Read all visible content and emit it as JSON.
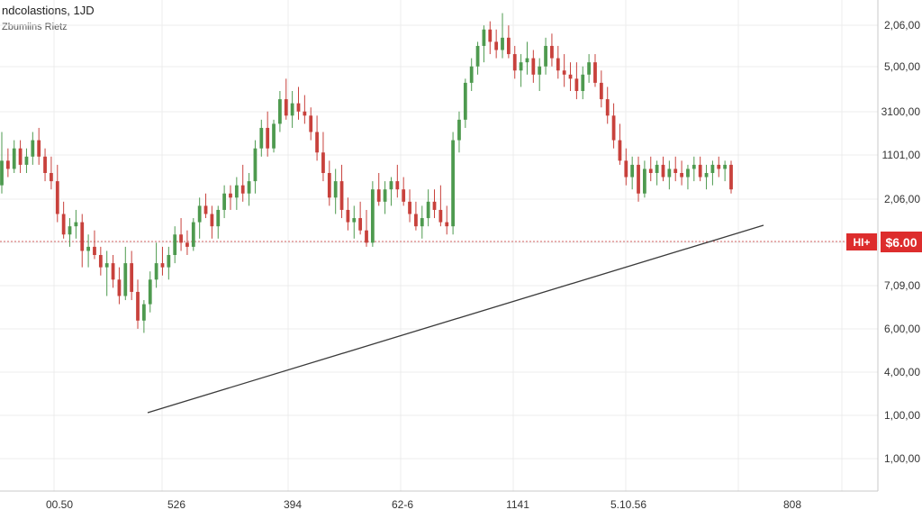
{
  "header": {
    "title": "ndcolastions, 1JD",
    "subtitle": "Zbumiins Rietz"
  },
  "price_tag": {
    "label": "HI+",
    "value": "$6.00"
  },
  "colors": {
    "up": "#4e9a4f",
    "down": "#c8413c",
    "trend": "#3a3a3a",
    "dotted": "#d96a6a",
    "grid": "#ececec",
    "tag": "#dd2d2d"
  },
  "chart_data": {
    "type": "candlestick",
    "title": "ndcolastions, 1JD",
    "subtitle": "Zbumiins Rietz",
    "xlabel": "",
    "ylabel": "",
    "x_tick_labels": [
      "00.50",
      "526",
      "394",
      "62-6",
      "1141",
      "5.10.56",
      "808"
    ],
    "y_tick_labels": [
      "2,06,00",
      "5,00,00",
      "3100,00",
      "1101,00",
      "2,06,00",
      "$6.00",
      "7,09,00",
      "6,00,00",
      "4,00,00",
      "1,00,00",
      "1,00,00"
    ],
    "ylim": [
      0,
      100
    ],
    "grid": true,
    "candles": [
      {
        "o": 57,
        "h": 70,
        "l": 55,
        "c": 63
      },
      {
        "o": 63,
        "h": 66,
        "l": 59,
        "c": 61
      },
      {
        "o": 61,
        "h": 68,
        "l": 60,
        "c": 66
      },
      {
        "o": 66,
        "h": 68,
        "l": 60,
        "c": 62
      },
      {
        "o": 62,
        "h": 66,
        "l": 60,
        "c": 64
      },
      {
        "o": 64,
        "h": 70,
        "l": 62,
        "c": 68
      },
      {
        "o": 68,
        "h": 71,
        "l": 62,
        "c": 64
      },
      {
        "o": 64,
        "h": 66,
        "l": 58,
        "c": 60
      },
      {
        "o": 60,
        "h": 64,
        "l": 56,
        "c": 58
      },
      {
        "o": 58,
        "h": 62,
        "l": 48,
        "c": 50
      },
      {
        "o": 50,
        "h": 53,
        "l": 44,
        "c": 45
      },
      {
        "o": 45,
        "h": 49,
        "l": 42,
        "c": 47
      },
      {
        "o": 47,
        "h": 51,
        "l": 44,
        "c": 48
      },
      {
        "o": 48,
        "h": 50,
        "l": 37,
        "c": 41
      },
      {
        "o": 41,
        "h": 45,
        "l": 37,
        "c": 42
      },
      {
        "o": 42,
        "h": 46,
        "l": 39,
        "c": 40
      },
      {
        "o": 40,
        "h": 42,
        "l": 35,
        "c": 37
      },
      {
        "o": 37,
        "h": 41,
        "l": 30,
        "c": 38
      },
      {
        "o": 38,
        "h": 40,
        "l": 32,
        "c": 34
      },
      {
        "o": 34,
        "h": 37,
        "l": 28,
        "c": 30
      },
      {
        "o": 30,
        "h": 42,
        "l": 29,
        "c": 38
      },
      {
        "o": 38,
        "h": 41,
        "l": 29,
        "c": 31
      },
      {
        "o": 31,
        "h": 34,
        "l": 22,
        "c": 24
      },
      {
        "o": 24,
        "h": 29,
        "l": 21,
        "c": 28
      },
      {
        "o": 28,
        "h": 36,
        "l": 26,
        "c": 34
      },
      {
        "o": 34,
        "h": 43,
        "l": 32,
        "c": 38
      },
      {
        "o": 38,
        "h": 42,
        "l": 35,
        "c": 37
      },
      {
        "o": 37,
        "h": 42,
        "l": 34,
        "c": 40
      },
      {
        "o": 40,
        "h": 47,
        "l": 38,
        "c": 45
      },
      {
        "o": 45,
        "h": 49,
        "l": 41,
        "c": 43
      },
      {
        "o": 43,
        "h": 46,
        "l": 40,
        "c": 42
      },
      {
        "o": 42,
        "h": 49,
        "l": 41,
        "c": 48
      },
      {
        "o": 48,
        "h": 54,
        "l": 44,
        "c": 52
      },
      {
        "o": 52,
        "h": 55,
        "l": 49,
        "c": 50
      },
      {
        "o": 50,
        "h": 52,
        "l": 44,
        "c": 47
      },
      {
        "o": 47,
        "h": 52,
        "l": 44,
        "c": 51
      },
      {
        "o": 51,
        "h": 57,
        "l": 49,
        "c": 55
      },
      {
        "o": 55,
        "h": 57,
        "l": 51,
        "c": 54
      },
      {
        "o": 54,
        "h": 59,
        "l": 51,
        "c": 57
      },
      {
        "o": 57,
        "h": 62,
        "l": 53,
        "c": 55
      },
      {
        "o": 55,
        "h": 60,
        "l": 52,
        "c": 58
      },
      {
        "o": 58,
        "h": 68,
        "l": 55,
        "c": 66
      },
      {
        "o": 66,
        "h": 73,
        "l": 64,
        "c": 71
      },
      {
        "o": 71,
        "h": 75,
        "l": 64,
        "c": 66
      },
      {
        "o": 66,
        "h": 73,
        "l": 65,
        "c": 72
      },
      {
        "o": 72,
        "h": 80,
        "l": 70,
        "c": 78
      },
      {
        "o": 78,
        "h": 83,
        "l": 73,
        "c": 74
      },
      {
        "o": 74,
        "h": 80,
        "l": 71,
        "c": 77
      },
      {
        "o": 77,
        "h": 81,
        "l": 73,
        "c": 75
      },
      {
        "o": 75,
        "h": 79,
        "l": 72,
        "c": 74
      },
      {
        "o": 74,
        "h": 76,
        "l": 68,
        "c": 70
      },
      {
        "o": 70,
        "h": 74,
        "l": 63,
        "c": 65
      },
      {
        "o": 65,
        "h": 70,
        "l": 58,
        "c": 60
      },
      {
        "o": 60,
        "h": 63,
        "l": 52,
        "c": 54
      },
      {
        "o": 54,
        "h": 61,
        "l": 50,
        "c": 58
      },
      {
        "o": 58,
        "h": 62,
        "l": 49,
        "c": 51
      },
      {
        "o": 51,
        "h": 54,
        "l": 46,
        "c": 48
      },
      {
        "o": 48,
        "h": 52,
        "l": 44,
        "c": 49
      },
      {
        "o": 49,
        "h": 53,
        "l": 45,
        "c": 46
      },
      {
        "o": 46,
        "h": 51,
        "l": 42,
        "c": 43
      },
      {
        "o": 43,
        "h": 58,
        "l": 42,
        "c": 56
      },
      {
        "o": 56,
        "h": 60,
        "l": 52,
        "c": 53
      },
      {
        "o": 53,
        "h": 58,
        "l": 50,
        "c": 56
      },
      {
        "o": 56,
        "h": 59,
        "l": 52,
        "c": 58
      },
      {
        "o": 58,
        "h": 62,
        "l": 54,
        "c": 56
      },
      {
        "o": 56,
        "h": 59,
        "l": 52,
        "c": 53
      },
      {
        "o": 53,
        "h": 56,
        "l": 48,
        "c": 50
      },
      {
        "o": 50,
        "h": 53,
        "l": 46,
        "c": 47
      },
      {
        "o": 47,
        "h": 52,
        "l": 44,
        "c": 49
      },
      {
        "o": 49,
        "h": 56,
        "l": 47,
        "c": 53
      },
      {
        "o": 53,
        "h": 56,
        "l": 49,
        "c": 51
      },
      {
        "o": 51,
        "h": 57,
        "l": 47,
        "c": 48
      },
      {
        "o": 48,
        "h": 52,
        "l": 45,
        "c": 47
      },
      {
        "o": 47,
        "h": 70,
        "l": 45,
        "c": 68
      },
      {
        "o": 68,
        "h": 75,
        "l": 65,
        "c": 73
      },
      {
        "o": 73,
        "h": 83,
        "l": 71,
        "c": 82
      },
      {
        "o": 82,
        "h": 88,
        "l": 80,
        "c": 86
      },
      {
        "o": 86,
        "h": 92,
        "l": 84,
        "c": 91
      },
      {
        "o": 91,
        "h": 96,
        "l": 87,
        "c": 95
      },
      {
        "o": 95,
        "h": 97,
        "l": 89,
        "c": 92
      },
      {
        "o": 92,
        "h": 95,
        "l": 88,
        "c": 90
      },
      {
        "o": 90,
        "h": 99,
        "l": 88,
        "c": 93
      },
      {
        "o": 93,
        "h": 96,
        "l": 88,
        "c": 89
      },
      {
        "o": 89,
        "h": 91,
        "l": 83,
        "c": 85
      },
      {
        "o": 85,
        "h": 89,
        "l": 81,
        "c": 87
      },
      {
        "o": 87,
        "h": 92,
        "l": 84,
        "c": 88
      },
      {
        "o": 88,
        "h": 90,
        "l": 82,
        "c": 84
      },
      {
        "o": 84,
        "h": 88,
        "l": 80,
        "c": 86
      },
      {
        "o": 86,
        "h": 93,
        "l": 84,
        "c": 91
      },
      {
        "o": 91,
        "h": 94,
        "l": 86,
        "c": 88
      },
      {
        "o": 88,
        "h": 91,
        "l": 83,
        "c": 85
      },
      {
        "o": 85,
        "h": 89,
        "l": 81,
        "c": 84
      },
      {
        "o": 84,
        "h": 87,
        "l": 80,
        "c": 83
      },
      {
        "o": 83,
        "h": 87,
        "l": 78,
        "c": 80
      },
      {
        "o": 80,
        "h": 86,
        "l": 78,
        "c": 84
      },
      {
        "o": 84,
        "h": 89,
        "l": 82,
        "c": 87
      },
      {
        "o": 87,
        "h": 89,
        "l": 81,
        "c": 82
      },
      {
        "o": 82,
        "h": 85,
        "l": 76,
        "c": 78
      },
      {
        "o": 78,
        "h": 81,
        "l": 72,
        "c": 74
      },
      {
        "o": 74,
        "h": 77,
        "l": 66,
        "c": 68
      },
      {
        "o": 68,
        "h": 72,
        "l": 62,
        "c": 63
      },
      {
        "o": 63,
        "h": 66,
        "l": 57,
        "c": 59
      },
      {
        "o": 59,
        "h": 64,
        "l": 56,
        "c": 62
      },
      {
        "o": 62,
        "h": 64,
        "l": 53,
        "c": 55
      },
      {
        "o": 55,
        "h": 63,
        "l": 54,
        "c": 61
      },
      {
        "o": 61,
        "h": 64,
        "l": 58,
        "c": 60
      },
      {
        "o": 60,
        "h": 63,
        "l": 57,
        "c": 62
      },
      {
        "o": 62,
        "h": 64,
        "l": 58,
        "c": 59
      },
      {
        "o": 59,
        "h": 63,
        "l": 56,
        "c": 61
      },
      {
        "o": 61,
        "h": 64,
        "l": 58,
        "c": 60
      },
      {
        "o": 60,
        "h": 63,
        "l": 57,
        "c": 59
      },
      {
        "o": 59,
        "h": 62,
        "l": 56,
        "c": 61
      },
      {
        "o": 61,
        "h": 64,
        "l": 58,
        "c": 62
      },
      {
        "o": 62,
        "h": 64,
        "l": 58,
        "c": 59
      },
      {
        "o": 59,
        "h": 62,
        "l": 56,
        "c": 60
      },
      {
        "o": 60,
        "h": 63,
        "l": 57,
        "c": 62
      },
      {
        "o": 62,
        "h": 64,
        "l": 59,
        "c": 61
      },
      {
        "o": 61,
        "h": 63,
        "l": 58,
        "c": 62
      },
      {
        "o": 62,
        "h": 63,
        "l": 55,
        "c": 56
      }
    ]
  }
}
